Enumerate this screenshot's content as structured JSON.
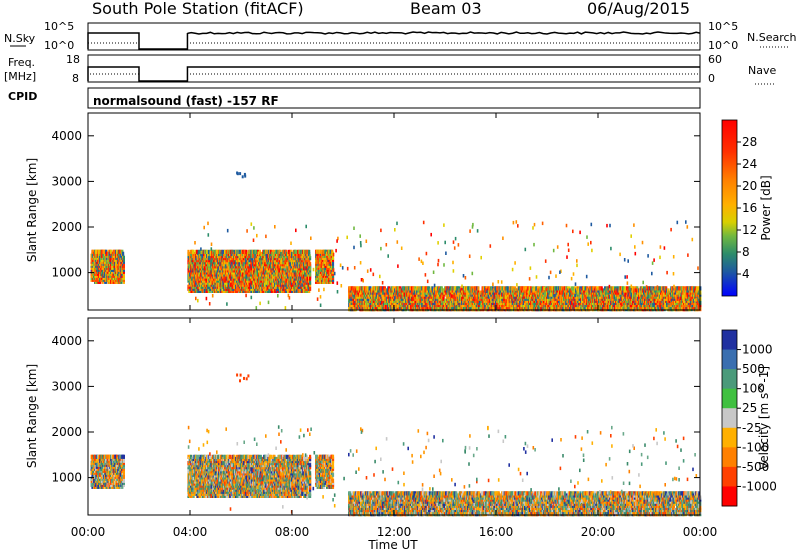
{
  "header": {
    "station": "South Pole Station (fitACF)",
    "beam": "Beam 03",
    "date": "06/Aug/2015"
  },
  "panels": {
    "nsky_label": "N.Sky",
    "nsearch_label": "N.Search",
    "sky_ticks": [
      "10^5",
      "10^0"
    ],
    "search_ticks": [
      "10^5",
      "10^0"
    ],
    "freq_label_1": "Freq.",
    "freq_label_2": "[MHz]",
    "freq_ticks": [
      "18",
      "8"
    ],
    "nave_label": "Nave",
    "nave_ticks": [
      "60",
      "0"
    ],
    "cpid_label": "CPID",
    "cpid_text": "normalsound (fast) -157 RF"
  },
  "chart_data": [
    {
      "type": "heatmap",
      "quantity": "Power",
      "xlabel": "Time UT",
      "ylabel": "Slant Range [km]",
      "colorbar_label": "Power [dB]",
      "colorbar_ticks": [
        "28",
        "24",
        "20",
        "16",
        "12",
        "8",
        "4"
      ],
      "colorbar_colors": [
        "#ff0000",
        "#ff4000",
        "#ff8000",
        "#ffb000",
        "#e0d000",
        "#80c040",
        "#30a070",
        "#2c8c6a",
        "#2050a0",
        "#0000ff"
      ],
      "y_ticks": [
        "4000",
        "3000",
        "2000",
        "1000"
      ],
      "ylim": [
        180,
        4500
      ],
      "xlim_hours": [
        0,
        24
      ],
      "regions": [
        {
          "t0": 0.1,
          "t1": 1.4,
          "r0": 800,
          "r1": 1500,
          "level": 20
        },
        {
          "t0": 3.9,
          "t1": 8.7,
          "r0": 600,
          "r1": 1500,
          "level": 26
        },
        {
          "t0": 8.9,
          "t1": 9.6,
          "r0": 800,
          "r1": 1500,
          "level": 22
        },
        {
          "t0": 10.2,
          "t1": 24.0,
          "r0": 200,
          "r1": 700,
          "level": 28
        }
      ]
    },
    {
      "type": "heatmap",
      "quantity": "Velocity",
      "xlabel": "Time UT",
      "ylabel": "Slant Range [km]",
      "colorbar_label": "Velocity [m s^-1]",
      "colorbar_ticks": [
        "1000",
        "500",
        "100",
        "25",
        "-25",
        "-100",
        "-500",
        "-1000"
      ],
      "colorbar_colors": [
        "#2030a0",
        "#3a6fb0",
        "#4a9a7a",
        "#40c040",
        "#c8c8c8",
        "#ffb000",
        "#ff8000",
        "#ff4000",
        "#ff0000"
      ],
      "y_ticks": [
        "4000",
        "3000",
        "2000",
        "1000"
      ],
      "ylim": [
        180,
        4500
      ],
      "xlim_hours": [
        0,
        24
      ],
      "regions": [
        {
          "t0": 0.1,
          "t1": 1.4,
          "r0": 800,
          "r1": 1500,
          "level": -100
        },
        {
          "t0": 3.9,
          "t1": 8.7,
          "r0": 600,
          "r1": 1500,
          "level": -300
        },
        {
          "t0": 8.9,
          "t1": 9.6,
          "r0": 800,
          "r1": 1500,
          "level": -500
        },
        {
          "t0": 10.2,
          "t1": 24.0,
          "r0": 200,
          "r1": 700,
          "level": 100
        }
      ]
    }
  ],
  "x_ticks": [
    "00:00",
    "04:00",
    "08:00",
    "12:00",
    "16:00",
    "20:00",
    "00:00"
  ],
  "x_axis_label": "Time UT"
}
